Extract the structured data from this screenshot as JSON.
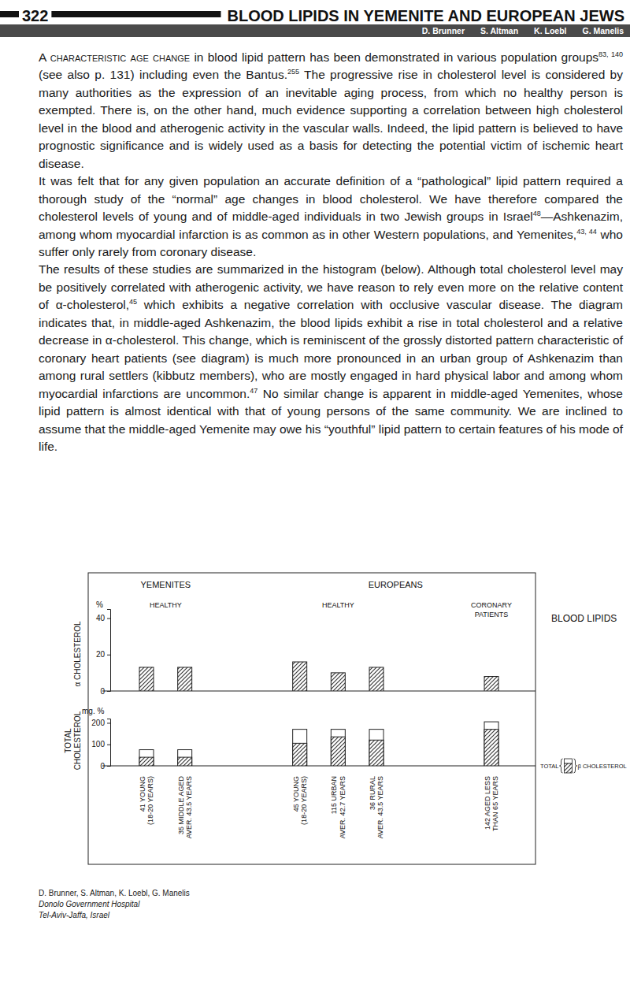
{
  "header": {
    "page": "322",
    "title": "BLOOD LIPIDS IN YEMENITE AND EUROPEAN JEWS",
    "authors": [
      "D. Brunner",
      "S. Altman",
      "K. Loebl",
      "G. Manelis"
    ]
  },
  "body": {
    "paragraphs": [
      [
        {
          "sc": "A characteristic age change"
        },
        " in blood lipid pattern has been demonstrated in various population groups",
        {
          "sup": "83, 140"
        },
        " (see also p. 131) including even the Bantus.",
        {
          "sup": "255"
        },
        " The progressive rise in cholesterol level is considered by many authorities as the expression of an inevitable aging process, from which no healthy person is exempted. There is, on the other hand, much evidence supporting a correlation between high cholesterol level in the blood and atherogenic activity in the vascular walls. Indeed, the lipid pattern is believed to have prognostic significance and is widely used as a basis for detecting the potential victim of ischemic heart disease."
      ],
      [
        "It was felt that for any given population an accurate definition of a “pathological” lipid pattern required a thorough study of the “normal” age changes in blood cholesterol. We have therefore compared the cholesterol levels of young and of middle-aged individuals in two Jewish groups in Israel",
        {
          "sup": "48"
        },
        "—Ashkenazim, among whom myocardial infarction is as common as in other Western populations, and Yemenites,",
        {
          "sup": "43, 44"
        },
        " who suffer only rarely from coronary disease."
      ],
      [
        "The results of these studies are summarized in the histogram (below). Although total cholesterol level may be positively correlated with atherogenic activity, we have reason to rely even more on the relative content of α-cholesterol,",
        {
          "sup": "45"
        },
        " which exhibits a negative correlation with occlusive vascular disease. The diagram indicates that, in middle-aged Ashkenazim, the blood lipids exhibit a rise in total cholesterol and a relative decrease in α-cholesterol. This change, which is reminiscent of the grossly distorted pattern characteristic of coronary heart patients (see diagram) is much more pronounced in an urban group of Ashkenazim than among rural settlers (kibbutz members), who are mostly engaged in hard physical labor and among whom myocardial infarctions are uncommon.",
        {
          "sup": "47"
        },
        " No similar change is apparent in middle-aged Yemenites, whose lipid pattern is almost identical with that of young persons of the same community. We are inclined to assume that the middle-aged Yemenite may owe his “youthful” lipid pattern to certain features of his mode of life."
      ]
    ]
  },
  "figure": {
    "title": "BLOOD LIPIDS",
    "groups": [
      {
        "label": "YEMENITES",
        "subgroups": [
          {
            "label": "HEALTHY",
            "size": 2
          }
        ]
      },
      {
        "label": "EUROPEANS",
        "subgroups": [
          {
            "label": "HEALTHY",
            "size": 3
          },
          {
            "label": "CORONARY\nPATIENTS",
            "size": 1
          }
        ]
      }
    ]
  },
  "chart_data": [
    {
      "type": "bar",
      "ylabel": "α CHOLESTEROL",
      "yunit": "%",
      "categories": [
        "41 YOUNG\n(18-20 YEARS)",
        "35 MIDDLE AGED\nAVER. 43.5 YEARS",
        "45 YOUNG\n(18-20 YEARS)",
        "115 URBAN\nAVER. 42.7 YEARS",
        "36 RURAL\nAVER. 43.5 YEARS",
        "142 AGED LESS\nTHAN 65 YEARS"
      ],
      "values": [
        13,
        13,
        16,
        10,
        13,
        8
      ],
      "color": "#3a3a3a",
      "ylim": [
        0,
        45
      ],
      "yticks": [
        0,
        20,
        40
      ],
      "tick_labels": "y"
    },
    {
      "type": "bar",
      "ylabel": "TOTAL\nCHOLESTEROL",
      "yunit": "mg. %",
      "categories": [
        "41 YOUNG\n(18-20 YEARS)",
        "35 MIDDLE AGED\nAVER. 43.5 YEARS",
        "45 YOUNG\n(18-20 YEARS)",
        "115 URBAN\nAVER. 42.7 YEARS",
        "36 RURAL\nAVER. 43.5 YEARS",
        "142 AGED LESS\nTHAN 65 YEARS"
      ],
      "series": [
        {
          "name": "TOTAL",
          "color": "#ffffff",
          "values": [
            75,
            75,
            170,
            170,
            170,
            205
          ]
        },
        {
          "name": "β CHOLESTEROL",
          "color": "#3a3a3a",
          "values": [
            40,
            40,
            105,
            135,
            120,
            170
          ]
        }
      ],
      "ylim": [
        0,
        220
      ],
      "yticks": [
        0,
        100,
        200
      ],
      "stacked": false,
      "legend": "right"
    }
  ],
  "footer": {
    "lines": [
      "D. Brunner, S. Altman, K. Loebl, G. Manelis",
      "Donolo Government Hospital",
      "Tel-Aviv-Jaffa, Israel"
    ]
  }
}
